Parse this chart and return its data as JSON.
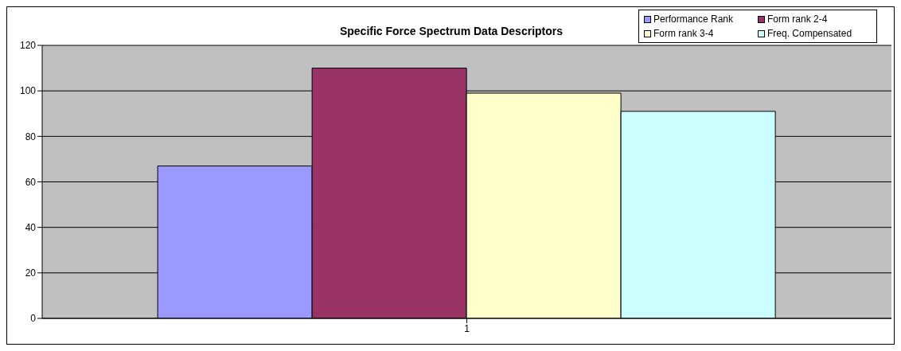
{
  "chart_data": {
    "type": "bar",
    "title": "Specific Force Spectrum Data Descriptors",
    "categories": [
      "1"
    ],
    "series": [
      {
        "name": "Performance Rank",
        "color": "#9999ff",
        "values": [
          67
        ]
      },
      {
        "name": "Form rank 2-4",
        "color": "#993366",
        "values": [
          110
        ]
      },
      {
        "name": "Form rank 3-4",
        "color": "#ffffcc",
        "values": [
          99
        ]
      },
      {
        "name": "Freq. Compensated",
        "color": "#ccffff",
        "values": [
          91
        ]
      }
    ],
    "ylim": [
      0,
      120
    ],
    "yticks": [
      0,
      20,
      40,
      60,
      80,
      100,
      120
    ],
    "grid": "y",
    "legend": "top right"
  }
}
